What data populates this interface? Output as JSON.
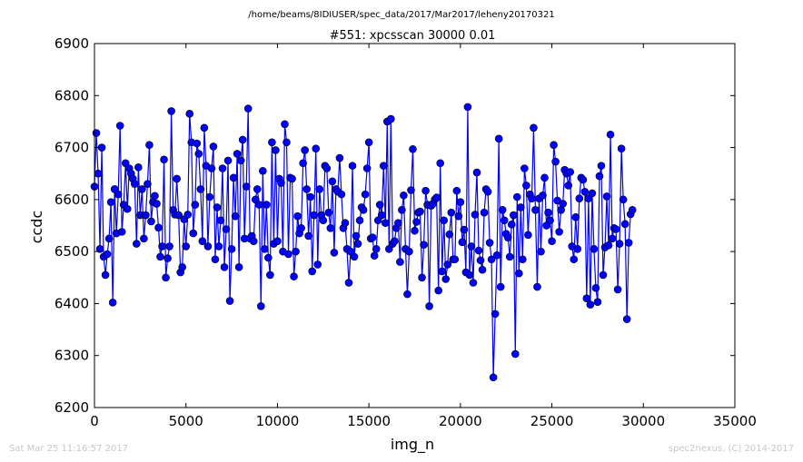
{
  "header": {
    "path": "/home/beams/8IDIUSER/spec_data/2017/Mar2017/leheny20170321"
  },
  "footer": {
    "left": "Sat Mar 25 11:16:57 2017",
    "right": "spec2nexus, (C) 2014-2017"
  },
  "chart_data": {
    "type": "line",
    "title": "#551: xpcsscan 30000 0.01",
    "xlabel": "img_n",
    "ylabel": "ccdc",
    "xlim": [
      0,
      35000
    ],
    "ylim": [
      6200,
      6900
    ],
    "xticks": [
      0,
      5000,
      10000,
      15000,
      20000,
      25000,
      30000,
      35000
    ],
    "yticks": [
      6200,
      6300,
      6400,
      6500,
      6600,
      6700,
      6800,
      6900
    ],
    "grid": false,
    "marker": "circle",
    "color": "#0000ff",
    "series": [
      {
        "x_start": 0,
        "x_step": 100,
        "values": [
          6625,
          6728,
          6650,
          6505,
          6700,
          6490,
          6455,
          6495,
          6525,
          6595,
          6402,
          6620,
          6535,
          6610,
          6742,
          6538,
          6590,
          6670,
          6582,
          6660,
          6650,
          6640,
          6630,
          6515,
          6662,
          6570,
          6620,
          6525,
          6570,
          6630,
          6705,
          6558,
          6595,
          6607,
          6592,
          6546,
          6490,
          6510,
          6677,
          6450,
          6487,
          6510,
          6770,
          6580,
          6571,
          6640,
          6570,
          6460,
          6470,
          6562,
          6510,
          6571,
          6765,
          6710,
          6535,
          6590,
          6708,
          6688,
          6620,
          6520,
          6738,
          6665,
          6510,
          6605,
          6660,
          6702,
          6485,
          6585,
          6510,
          6560,
          6660,
          6470,
          6543,
          6675,
          6405,
          6505,
          6642,
          6568,
          6688,
          6470,
          6675,
          6715,
          6525,
          6625,
          6775,
          6525,
          6530,
          6520,
          6600,
          6620,
          6590,
          6395,
          6655,
          6505,
          6590,
          6488,
          6455,
          6710,
          6515,
          6695,
          6520,
          6640,
          6632,
          6500,
          6745,
          6710,
          6495,
          6642,
          6640,
          6452,
          6500,
          6568,
          6535,
          6545,
          6670,
          6695,
          6620,
          6530,
          6605,
          6462,
          6570,
          6698,
          6475,
          6620,
          6570,
          6560,
          6665,
          6660,
          6575,
          6545,
          6635,
          6498,
          6620,
          6615,
          6680,
          6610,
          6545,
          6555,
          6505,
          6440,
          6500,
          6665,
          6490,
          6530,
          6515,
          6560,
          6585,
          6580,
          6610,
          6660,
          6710,
          6525,
          6527,
          6492,
          6505,
          6560,
          6590,
          6570,
          6665,
          6555,
          6750,
          6505,
          6755,
          6515,
          6520,
          6545,
          6555,
          6480,
          6580,
          6608,
          6505,
          6418,
          6500,
          6618,
          6697,
          6540,
          6557,
          6575,
          6577,
          6450,
          6513,
          6617,
          6590,
          6395,
          6588,
          6592,
          6600,
          6604,
          6425,
          6670,
          6462,
          6560,
          6447,
          6475,
          6533,
          6575,
          6485,
          6485,
          6617,
          6568,
          6595,
          6518,
          6542,
          6460,
          6778,
          6455,
          6510,
          6440,
          6571,
          6652,
          6502,
          6483,
          6465,
          6575,
          6620,
          6615,
          6517,
          6485,
          6258,
          6380,
          6493,
          6717,
          6432,
          6580,
          6560,
          6534,
          6527,
          6490,
          6552,
          6570,
          6303,
          6605,
          6458,
          6585,
          6485,
          6660,
          6627,
          6532,
          6610,
          6602,
          6738,
          6580,
          6432,
          6602,
          6500,
          6608,
          6642,
          6550,
          6575,
          6560,
          6520,
          6705,
          6673,
          6598,
          6538,
          6580,
          6592,
          6657,
          6650,
          6627,
          6653,
          6510,
          6485,
          6566,
          6505,
          6602,
          6642,
          6638,
          6615,
          6410,
          6602,
          6398,
          6612,
          6505,
          6430,
          6403,
          6645,
          6665,
          6455,
          6508,
          6606,
          6512,
          6725,
          6525,
          6545,
          6543,
          6427,
          6515,
          6698,
          6600,
          6553,
          6370,
          6517,
          6572,
          6580
        ]
      }
    ]
  }
}
